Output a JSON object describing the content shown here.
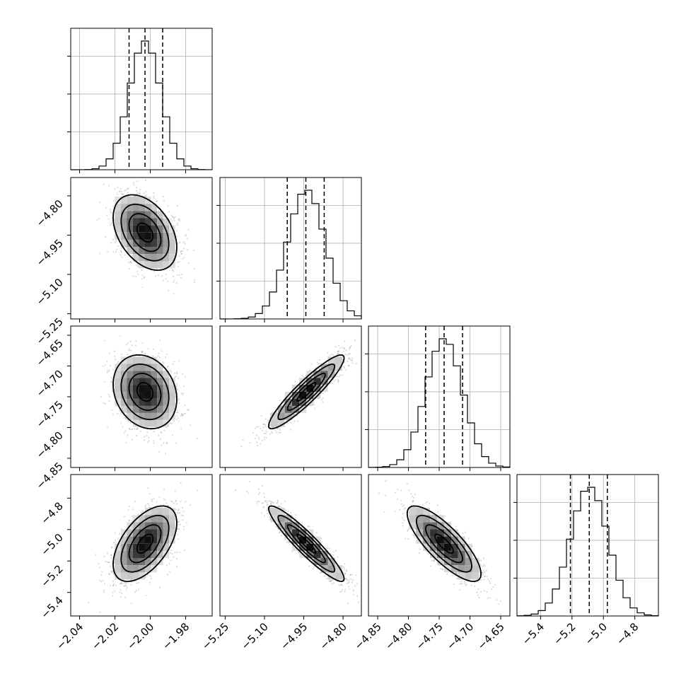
{
  "chart_data": {
    "type": "corner",
    "parameters": [
      {
        "range": [
          -2.045,
          -1.965
        ],
        "mean": -2.003,
        "sd": 0.009,
        "quantiles": [
          -2.012,
          -2.003,
          -1.993
        ],
        "ticks": [
          -2.04,
          -2.02,
          -2.0,
          -1.98
        ],
        "tick_labels": [
          "−2.04",
          "−2.02",
          "−2.00",
          "−1.98"
        ]
      },
      {
        "range": [
          -5.27,
          -4.73
        ],
        "mean": -4.94,
        "sd": 0.072,
        "quantiles": [
          -5.013,
          -4.942,
          -4.872
        ],
        "ticks": [
          -5.25,
          -5.1,
          -4.95,
          -4.8
        ],
        "tick_labels": [
          "−5.25",
          "−5.10",
          "−4.95",
          "−4.80"
        ]
      },
      {
        "range": [
          -4.865,
          -4.635
        ],
        "mean": -4.742,
        "sd": 0.03,
        "quantiles": [
          -4.772,
          -4.742,
          -4.712
        ],
        "ticks": [
          -4.85,
          -4.8,
          -4.75,
          -4.7,
          -4.65
        ],
        "tick_labels": [
          "−4.85",
          "−4.80",
          "−4.75",
          "−4.70",
          "−4.65"
        ]
      },
      {
        "range": [
          -5.55,
          -4.65
        ],
        "mean": -5.09,
        "sd": 0.12,
        "quantiles": [
          -5.21,
          -5.09,
          -4.975
        ],
        "ticks": [
          -5.4,
          -5.2,
          -5.0,
          -4.8
        ],
        "tick_labels": [
          "−5.4",
          "−5.2",
          "−5.0",
          "−4.8"
        ]
      }
    ],
    "correlations": [
      [
        1,
        -0.4,
        -0.2,
        0.55
      ],
      [
        -0.4,
        1,
        0.92,
        -0.93
      ],
      [
        -0.2,
        0.92,
        1,
        -0.8
      ],
      [
        0.55,
        -0.93,
        -0.8,
        1
      ]
    ],
    "histogram_bins": 20,
    "quantile_lines": "dashed",
    "contour_levels": 3,
    "grid": true,
    "colors": {
      "ink": "#000000",
      "grid": "#b0b0b0",
      "points": "#7a7a7a"
    }
  }
}
